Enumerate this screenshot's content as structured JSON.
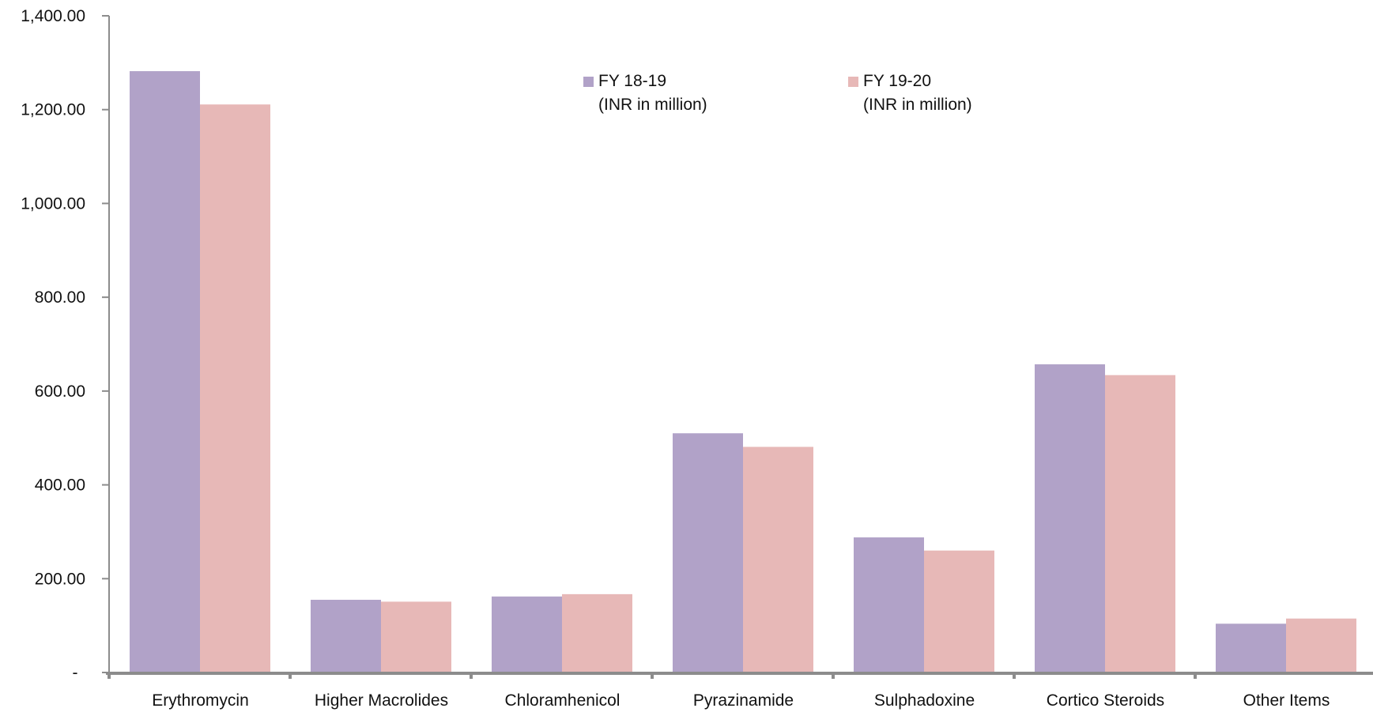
{
  "chart_data": {
    "type": "bar",
    "categories": [
      "Erythromycin",
      "Higher Macrolides",
      "Chloramhenicol",
      "Pyrazinamide",
      "Sulphadoxine",
      "Cortico Steroids",
      "Other Items"
    ],
    "series": [
      {
        "name": "FY 18-19",
        "name_line2": "(INR in million)",
        "color": "#b1a2c8",
        "values": [
          1282,
          155,
          162,
          510,
          288,
          657,
          104
        ]
      },
      {
        "name": "FY 19-20",
        "name_line2": "(INR in million)",
        "color": "#e7b8b7",
        "values": [
          1211,
          151,
          167,
          481,
          260,
          634,
          115
        ]
      }
    ],
    "ylim": [
      0,
      1400
    ],
    "yticks": [
      0,
      200,
      400,
      600,
      800,
      1000,
      1200,
      1400
    ],
    "ytick_labels": [
      "-",
      "200.00",
      "400.00",
      "600.00",
      "800.00",
      "1,000.00",
      "1,200.00",
      "1,400.00"
    ],
    "legend_position": "top-center",
    "grid": false,
    "title": "",
    "xlabel": "",
    "ylabel": ""
  }
}
